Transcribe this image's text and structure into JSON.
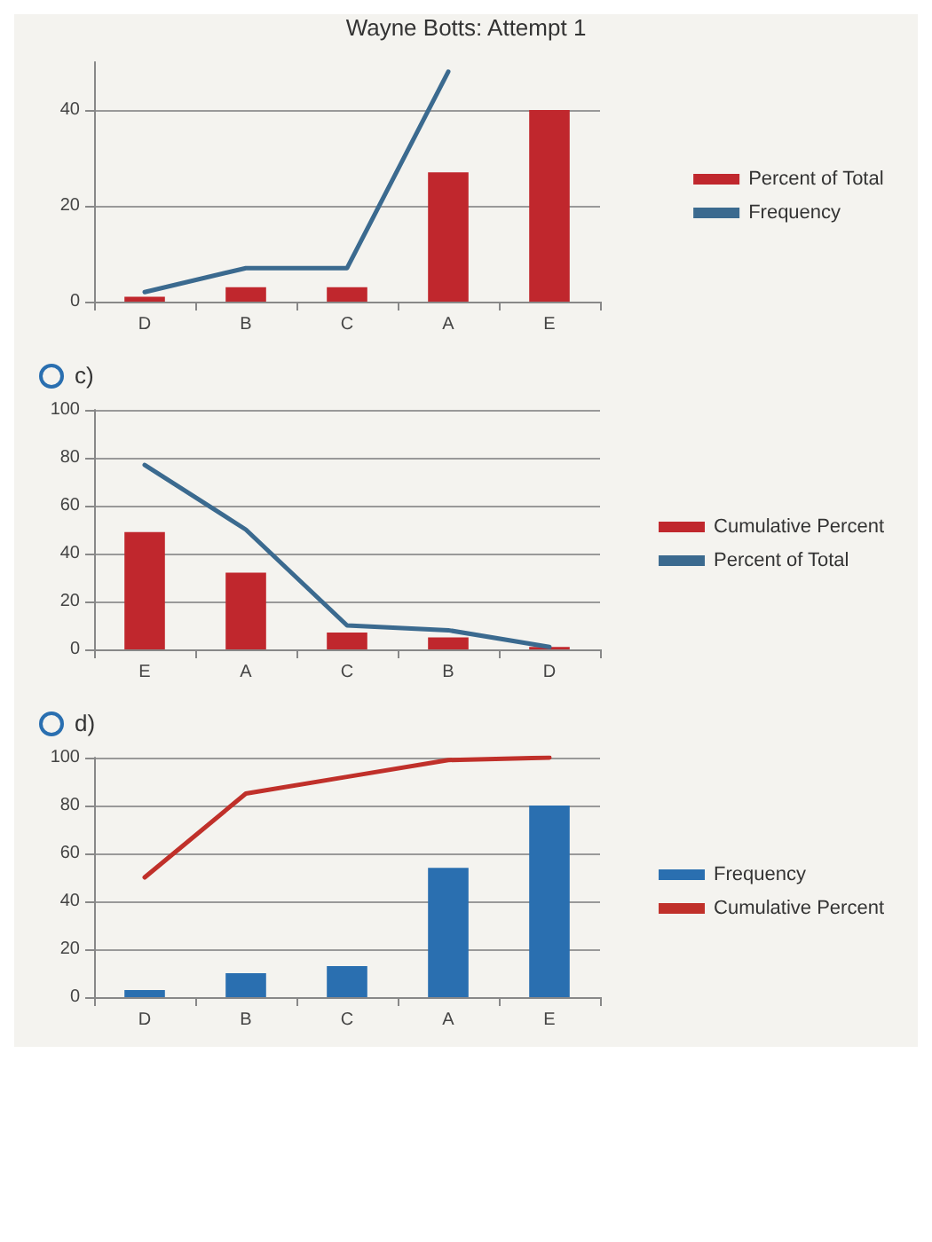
{
  "chart_data": [
    {
      "type": "bar",
      "annotations": [
        "Wayne Botts: Attempt 1"
      ],
      "categories": [
        "D",
        "B",
        "C",
        "A",
        "E"
      ],
      "series": [
        {
          "name": "Percent of Total",
          "color": "#c0272d",
          "values": [
            1,
            3,
            3,
            27,
            40
          ]
        },
        {
          "name": "Frequency",
          "type": "line",
          "color": "#3b6a8f",
          "values": [
            2,
            7,
            7,
            48,
            null
          ]
        }
      ],
      "ylim": [
        0,
        50
      ],
      "yticks": [
        0,
        20,
        40
      ],
      "grid": "y",
      "legend": "right",
      "marker": "none",
      "line_style": "solid"
    },
    {
      "type": "bar",
      "title": "c)",
      "categories": [
        "E",
        "A",
        "C",
        "B",
        "D"
      ],
      "series": [
        {
          "name": "Cumulative Percent",
          "color": "#c0272d",
          "values": [
            49,
            32,
            7,
            5,
            1
          ]
        },
        {
          "name": "Percent of Total",
          "type": "line",
          "color": "#3b6a8f",
          "values": [
            77,
            50,
            10,
            8,
            1
          ]
        }
      ],
      "ylim": [
        0,
        100
      ],
      "yticks": [
        0,
        20,
        40,
        60,
        80,
        100
      ],
      "grid": "y",
      "legend": "right",
      "marker": "none",
      "line_style": "solid"
    },
    {
      "type": "bar",
      "title": "d)",
      "categories": [
        "D",
        "B",
        "C",
        "A",
        "E"
      ],
      "series": [
        {
          "name": "Frequency",
          "color": "#2a6fb0",
          "values": [
            3,
            10,
            13,
            54,
            80
          ]
        },
        {
          "name": "Cumulative Percent",
          "type": "line",
          "color": "#c0302a",
          "values": [
            50,
            85,
            92,
            99,
            100
          ]
        }
      ],
      "ylim": [
        0,
        100
      ],
      "yticks": [
        0,
        20,
        40,
        60,
        80,
        100
      ],
      "grid": "y",
      "legend": "right",
      "marker": "none",
      "line_style": "solid"
    }
  ]
}
